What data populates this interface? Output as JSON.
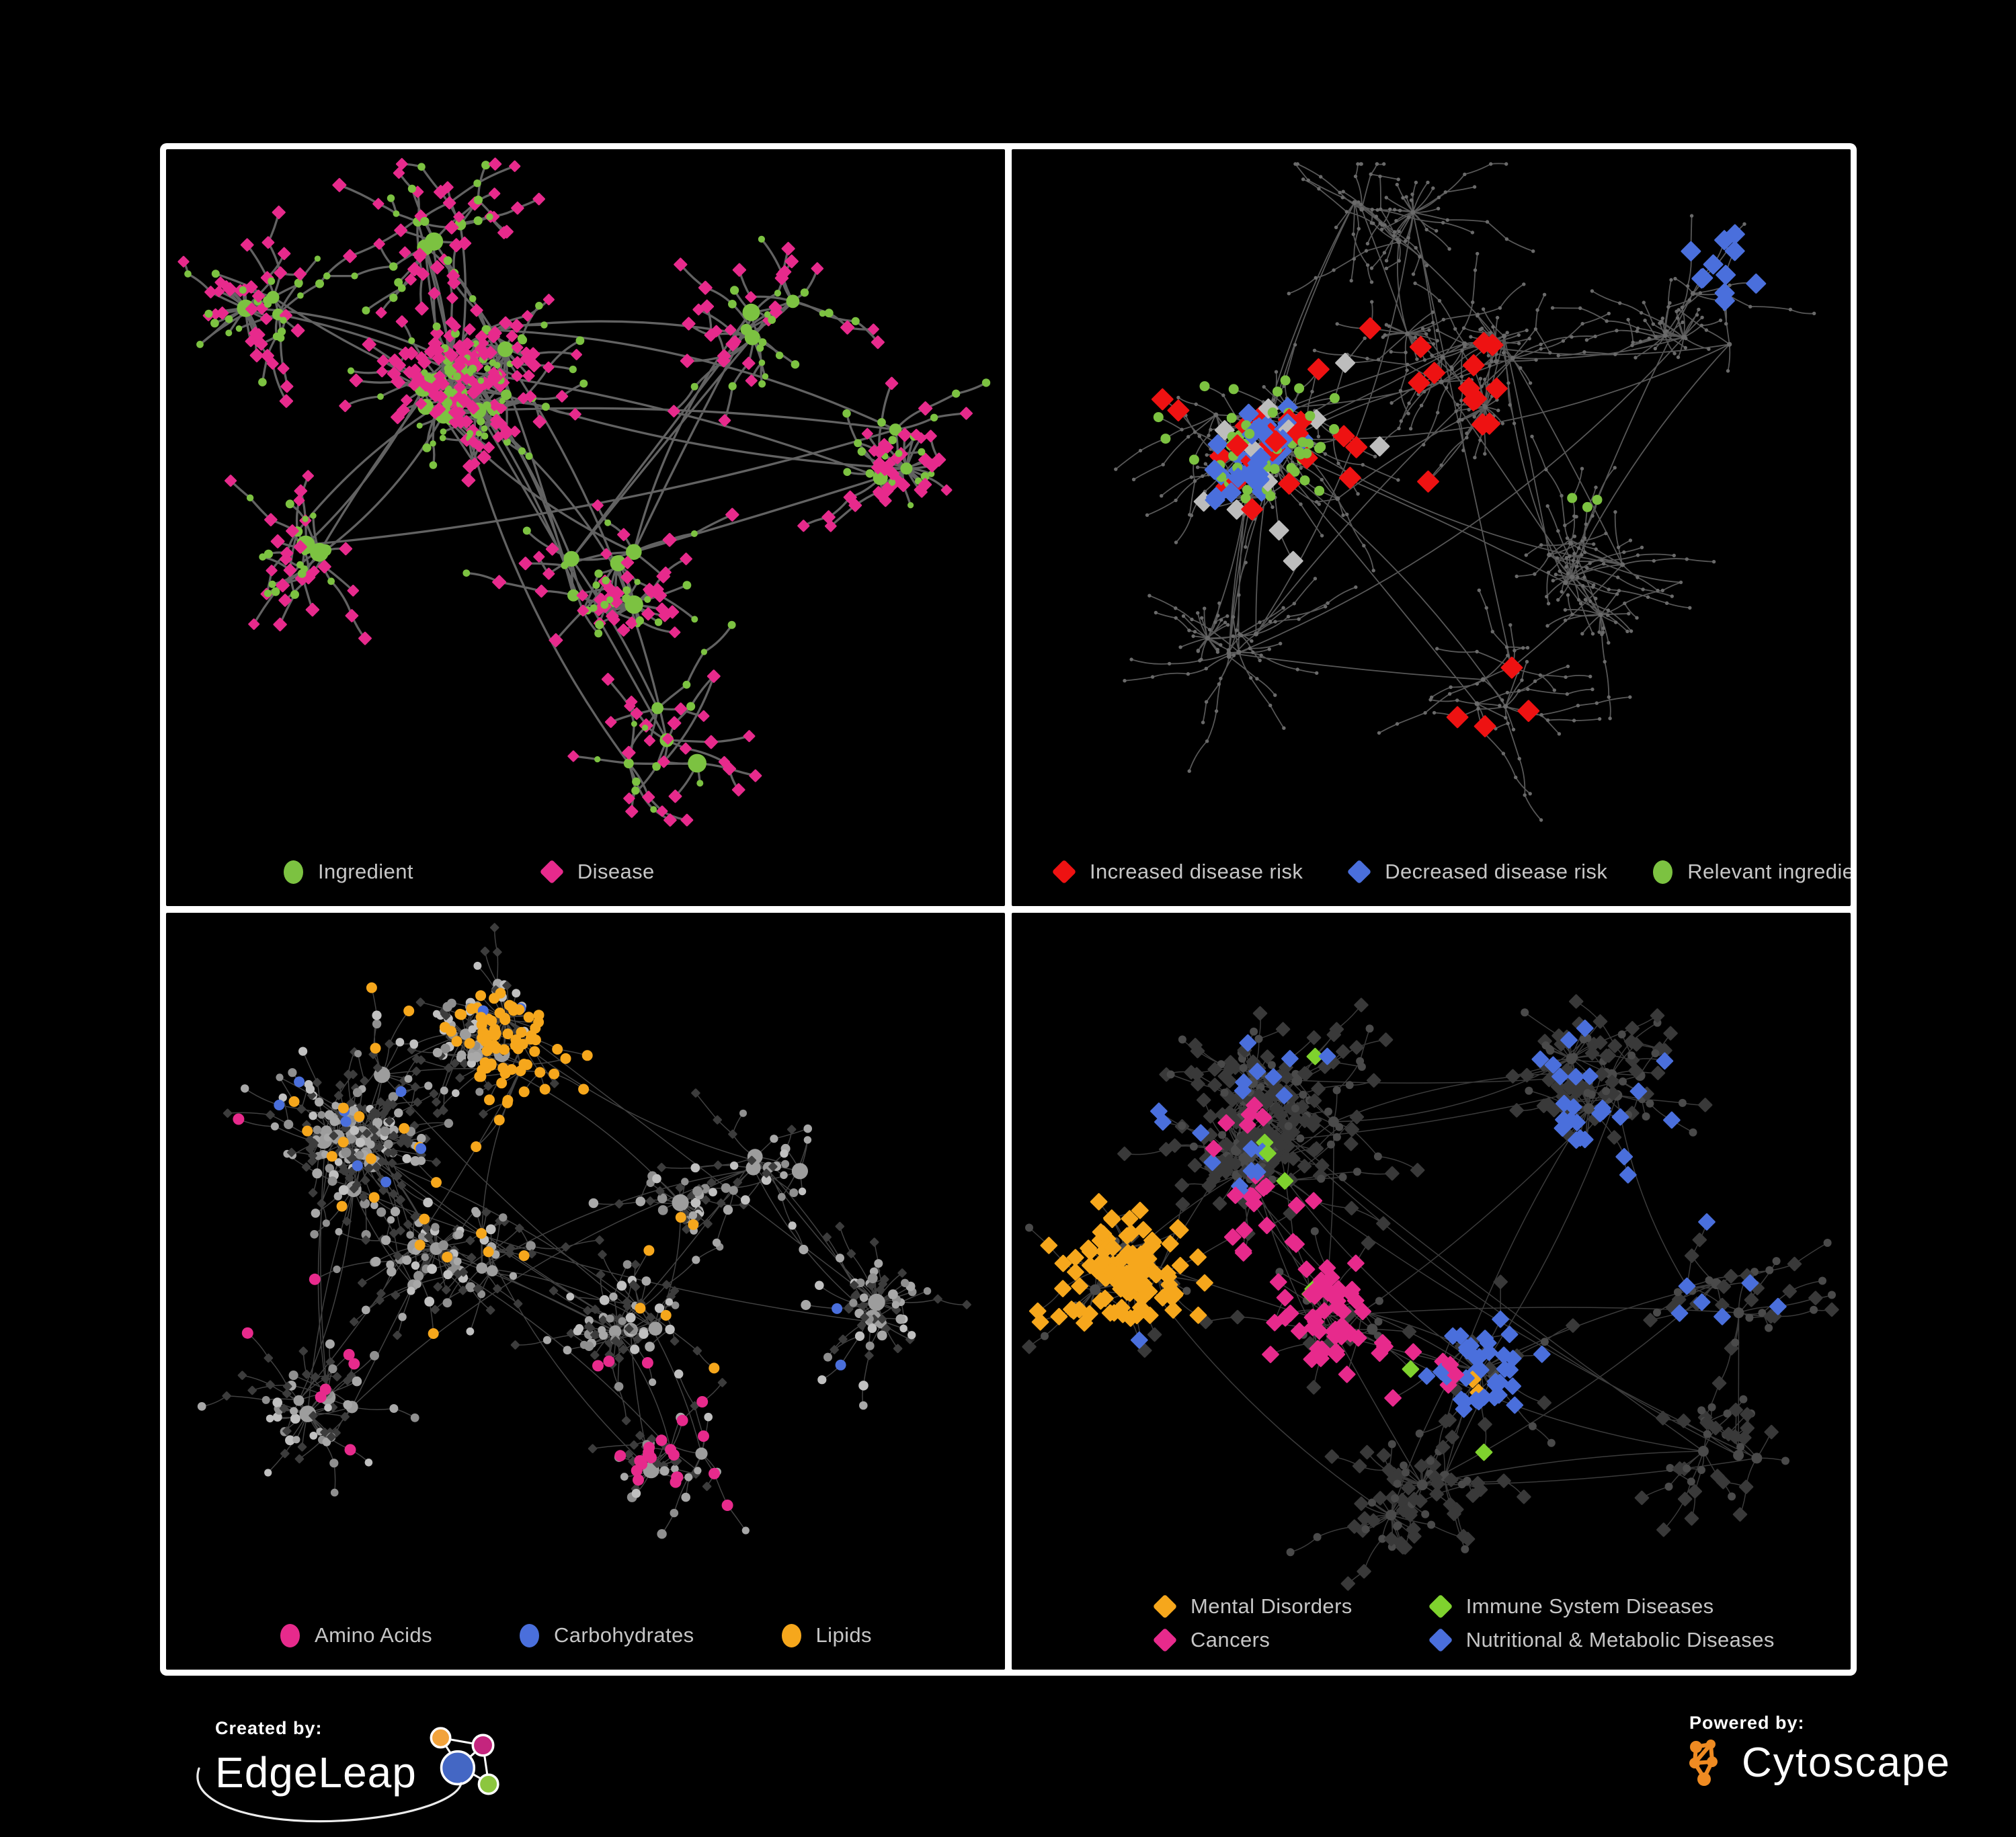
{
  "footer": {
    "created_by_label": "Created by:",
    "edgeleap_name": "EdgeLeap",
    "powered_by_label": "Powered by:",
    "cytoscape_name": "Cytoscape"
  },
  "colors": {
    "green": "#7cc241",
    "pink": "#e72a8c",
    "red": "#ee1212",
    "blue": "#4a6fdc",
    "orange": "#f6a71c",
    "lime": "#7fd22e",
    "gray_diamond": "#bdbdbd",
    "gray_node": "#9d9d9d",
    "dark_diamond": "#3c3c3c",
    "dark_circle": "#4a4a4a",
    "tiny_node": "#6a6a6a",
    "legend_text": "#c6c6c6",
    "edge_panel1": "#6f6f6f",
    "edge_panel2": "#5c5c5c",
    "edge_panel34": "#9a9a9a",
    "panel_border": "#ffffff",
    "background": "#000000",
    "edgeleap_logo": [
      "#f2a33c",
      "#c4257e",
      "#4467c4",
      "#8cc63f"
    ],
    "cytoscape_orange": "#ef8b22"
  },
  "panels": [
    {
      "id": "ingredient-disease",
      "legend": [
        {
          "label": "Ingredient",
          "shape": "circle",
          "color": "#7cc241"
        },
        {
          "label": "Disease",
          "shape": "diamond",
          "color": "#e72a8c"
        }
      ]
    },
    {
      "id": "disease-risk",
      "legend": [
        {
          "label": "Increased disease risk",
          "shape": "diamond",
          "color": "#ee1212"
        },
        {
          "label": "Decreased disease risk",
          "shape": "diamond",
          "color": "#4a6fdc"
        },
        {
          "label": "Relevant ingredient",
          "shape": "circle",
          "color": "#7cc241"
        }
      ]
    },
    {
      "id": "macronutrient-classes",
      "legend": [
        {
          "label": "Amino Acids",
          "shape": "circle",
          "color": "#e72a8c"
        },
        {
          "label": "Carbohydrates",
          "shape": "circle",
          "color": "#4a6fdc"
        },
        {
          "label": "Lipids",
          "shape": "circle",
          "color": "#f6a71c"
        }
      ]
    },
    {
      "id": "disease-classes",
      "legend": [
        {
          "label": "Mental Disorders",
          "shape": "diamond",
          "color": "#f6a71c"
        },
        {
          "label": "Immune System Diseases",
          "shape": "diamond",
          "color": "#7fd22e"
        },
        {
          "label": "Cancers",
          "shape": "diamond",
          "color": "#e72a8c"
        },
        {
          "label": "Nutritional & Metabolic Diseases",
          "shape": "diamond",
          "color": "#4a6fdc"
        }
      ]
    }
  ]
}
